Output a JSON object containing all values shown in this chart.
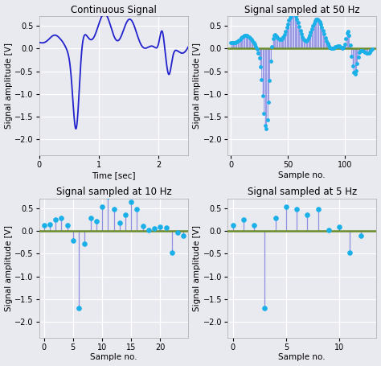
{
  "title_top_left": "Continuous Signal",
  "title_top_right": "Signal sampled at 50 Hz",
  "title_bot_left": "Signal sampled at 10 Hz",
  "title_bot_right": "Signal sampled at 5 Hz",
  "xlabel_time": "Time [sec]",
  "xlabel_sample": "Sample no.",
  "ylabel": "Signal amplitude [V]",
  "ylim": [
    -2.35,
    0.72
  ],
  "continuous_duration": 2.5,
  "fs_continuous": 1000,
  "fs_50": 50,
  "fs_10": 10,
  "fs_5": 5,
  "line_color": "#2222cc",
  "stem_line_color": "#9090e0",
  "stem_marker_color": "#1ab0e8",
  "zero_line_color": "#6b8c2a",
  "bar_fill_color": "#c0c0ff",
  "bar_fill_alpha": 0.55,
  "background_color": "#e9e9f0",
  "grid_color": "#ffffff",
  "title_fontsize": 8.5,
  "label_fontsize": 7.5,
  "tick_fontsize": 7
}
